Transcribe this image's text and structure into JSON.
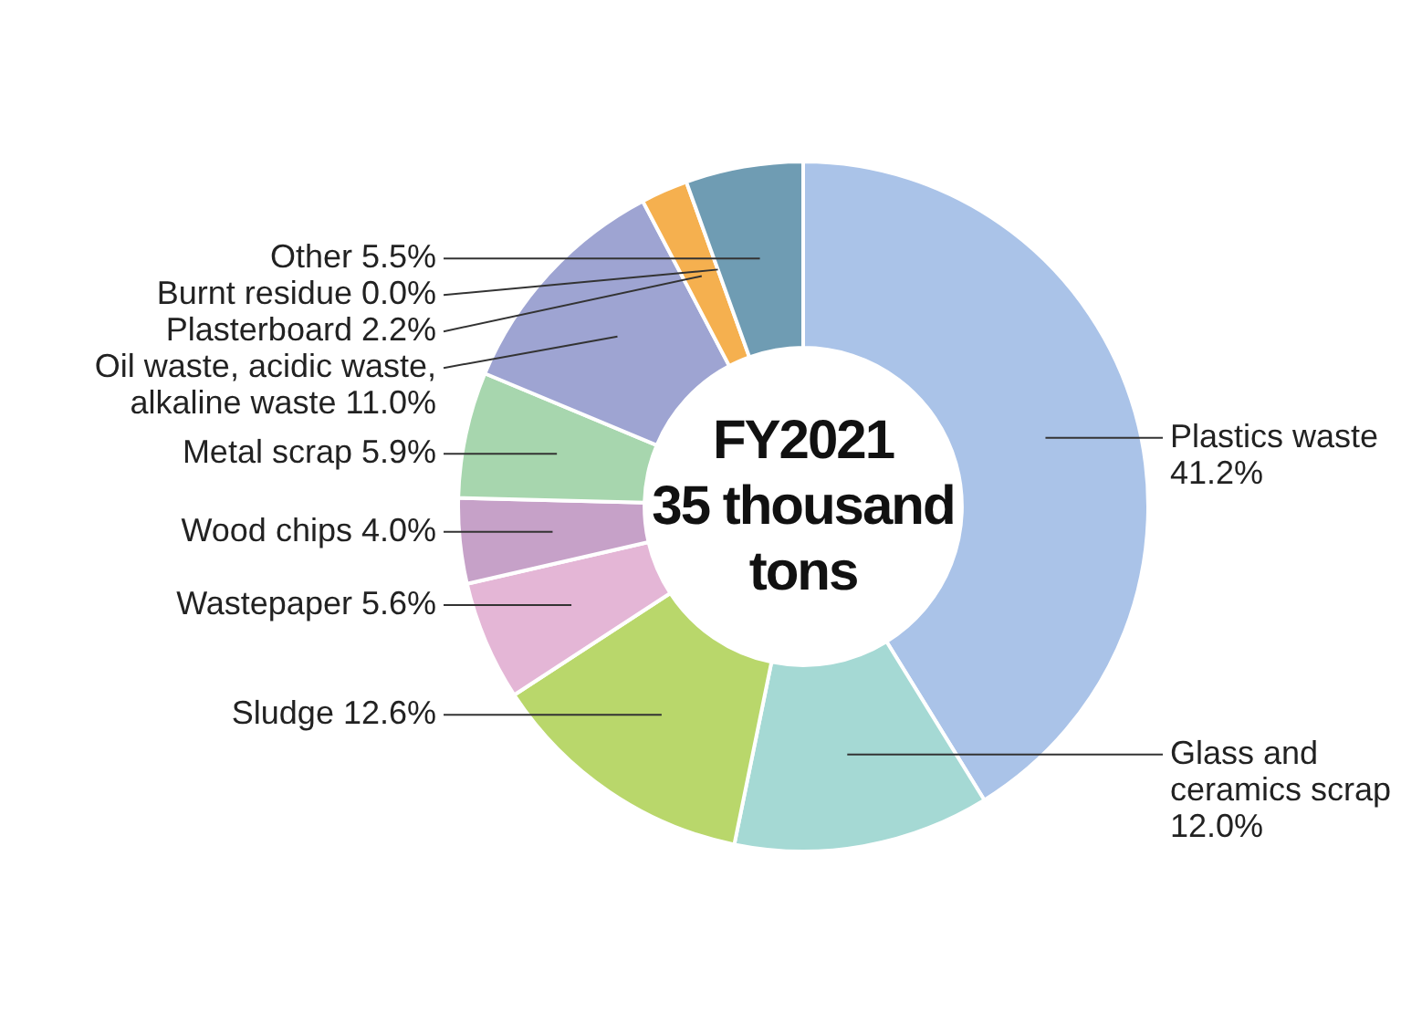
{
  "chart_data": {
    "type": "donut",
    "title": "FY2021",
    "subtitle": "35 thousand tons",
    "categories": [
      "Plastics waste",
      "Glass and ceramics scrap",
      "Sludge",
      "Wastepaper",
      "Wood chips",
      "Metal scrap",
      "Oil waste, acidic waste, alkaline waste",
      "Plasterboard",
      "Burnt residue",
      "Other"
    ],
    "values": [
      41.2,
      12.0,
      12.6,
      5.6,
      4.0,
      5.9,
      11.0,
      2.2,
      0.0,
      5.5
    ],
    "value_labels": [
      "41.2%",
      "12.0%",
      "12.6%",
      "5.6%",
      "4.0%",
      "5.9%",
      "11.0%",
      "2.2%",
      "0.0%",
      "5.5%"
    ],
    "colors": [
      "#aac3e8",
      "#a5d9d4",
      "#b9d76b",
      "#e4b6d6",
      "#c6a1c8",
      "#a7d6ae",
      "#9ea4d2",
      "#f5b04f",
      "#e0a040",
      "#6f9cb3"
    ],
    "legend": false
  }
}
